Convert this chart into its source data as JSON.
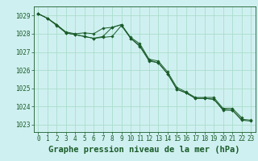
{
  "background_color": "#cff0f0",
  "grid_color": "#aaddcc",
  "line_color": "#1a5c2a",
  "xlabel": "Graphe pression niveau de la mer (hPa)",
  "ylim": [
    1022.6,
    1029.5
  ],
  "xlim": [
    -0.5,
    23.5
  ],
  "yticks": [
    1023,
    1024,
    1025,
    1026,
    1027,
    1028,
    1029
  ],
  "xticks": [
    0,
    1,
    2,
    3,
    4,
    5,
    6,
    7,
    8,
    9,
    10,
    11,
    12,
    13,
    14,
    15,
    16,
    17,
    18,
    19,
    20,
    21,
    22,
    23
  ],
  "series1_x": [
    0,
    1,
    2,
    3,
    4,
    5,
    6,
    7,
    8,
    9,
    10,
    11,
    12,
    13,
    14,
    15,
    16,
    17,
    18,
    19,
    20,
    21,
    22
  ],
  "series1_y": [
    1029.1,
    1028.85,
    1028.5,
    1028.1,
    1028.0,
    1028.05,
    1028.0,
    1028.3,
    1028.35,
    1028.5,
    1027.8,
    1027.45,
    1026.6,
    1026.5,
    1025.9,
    1025.05,
    1024.8,
    1024.5,
    1024.5,
    1024.5,
    1023.9,
    1023.9,
    1023.4
  ],
  "series2_x": [
    0,
    1,
    2,
    3,
    4,
    5,
    6,
    7,
    8,
    9,
    10,
    11,
    12,
    13,
    14,
    15,
    16,
    17,
    18,
    19,
    20,
    21,
    22,
    23
  ],
  "series2_y": [
    1029.1,
    1028.85,
    1028.5,
    1028.05,
    1027.95,
    1027.85,
    1027.75,
    1027.8,
    1027.85,
    1028.45,
    1027.75,
    1027.35,
    1026.55,
    1026.4,
    1025.8,
    1024.95,
    1024.75,
    1024.45,
    1024.45,
    1024.4,
    1023.85,
    1023.8,
    1023.3,
    1023.25
  ],
  "series3_x": [
    0,
    1,
    2,
    3,
    4,
    5,
    6,
    7,
    8,
    9,
    10,
    11,
    12,
    13,
    14,
    15,
    16,
    17,
    18,
    19,
    20,
    21,
    22,
    23
  ],
  "series3_y": [
    1029.1,
    1028.85,
    1028.45,
    1028.05,
    1027.95,
    1027.85,
    1027.75,
    1027.85,
    1028.35,
    1028.5,
    1027.75,
    1027.3,
    1026.5,
    1026.4,
    1025.8,
    1024.95,
    1024.75,
    1024.45,
    1024.45,
    1024.4,
    1023.8,
    1023.8,
    1023.25,
    1023.2
  ],
  "tick_fontsize": 5.5,
  "xlabel_fontsize": 7.5,
  "xlabel_fontweight": "bold"
}
